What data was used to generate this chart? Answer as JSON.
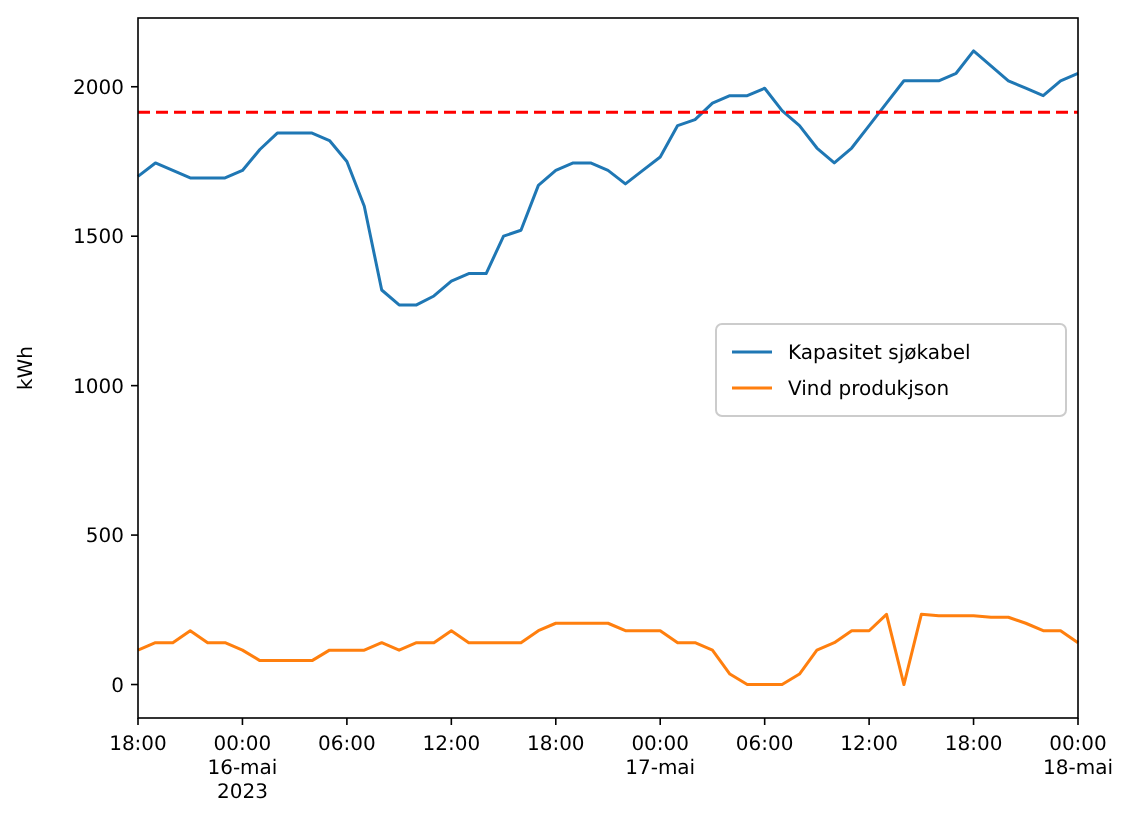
{
  "chart_data": {
    "type": "line",
    "ylabel": "kWh",
    "x": [
      "2023-05-15T18:00",
      "2023-05-15T19:00",
      "2023-05-15T20:00",
      "2023-05-15T21:00",
      "2023-05-15T22:00",
      "2023-05-15T23:00",
      "2023-05-16T00:00",
      "2023-05-16T01:00",
      "2023-05-16T02:00",
      "2023-05-16T03:00",
      "2023-05-16T04:00",
      "2023-05-16T05:00",
      "2023-05-16T06:00",
      "2023-05-16T07:00",
      "2023-05-16T08:00",
      "2023-05-16T09:00",
      "2023-05-16T10:00",
      "2023-05-16T11:00",
      "2023-05-16T12:00",
      "2023-05-16T13:00",
      "2023-05-16T14:00",
      "2023-05-16T15:00",
      "2023-05-16T16:00",
      "2023-05-16T17:00",
      "2023-05-16T18:00",
      "2023-05-16T19:00",
      "2023-05-16T20:00",
      "2023-05-16T21:00",
      "2023-05-16T22:00",
      "2023-05-16T23:00",
      "2023-05-17T00:00",
      "2023-05-17T01:00",
      "2023-05-17T02:00",
      "2023-05-17T03:00",
      "2023-05-17T04:00",
      "2023-05-17T05:00",
      "2023-05-17T06:00",
      "2023-05-17T07:00",
      "2023-05-17T08:00",
      "2023-05-17T09:00",
      "2023-05-17T10:00",
      "2023-05-17T11:00",
      "2023-05-17T12:00",
      "2023-05-17T13:00",
      "2023-05-17T14:00",
      "2023-05-17T15:00",
      "2023-05-17T16:00",
      "2023-05-17T17:00",
      "2023-05-17T18:00",
      "2023-05-17T19:00",
      "2023-05-17T20:00",
      "2023-05-17T21:00",
      "2023-05-17T22:00",
      "2023-05-17T23:00",
      "2023-05-18T00:00"
    ],
    "series": [
      {
        "name": "Kapasitet sjøkabel",
        "color": "#1f77b4",
        "values": [
          1700,
          1745,
          1720,
          1695,
          1695,
          1695,
          1720,
          1790,
          1845,
          1845,
          1845,
          1820,
          1750,
          1600,
          1320,
          1270,
          1270,
          1300,
          1350,
          1375,
          1375,
          1500,
          1520,
          1670,
          1720,
          1745,
          1745,
          1720,
          1675,
          1720,
          1765,
          1870,
          1890,
          1945,
          1970,
          1970,
          1995,
          1920,
          1870,
          1795,
          1745,
          1795,
          1870,
          1945,
          2020,
          2020,
          2020,
          2045,
          2120,
          2070,
          2020,
          1995,
          1970,
          2020,
          2045
        ]
      },
      {
        "name": "Vind produkjson",
        "color": "#ff7f0e",
        "values": [
          115,
          140,
          140,
          180,
          140,
          140,
          115,
          80,
          80,
          80,
          80,
          115,
          115,
          115,
          140,
          115,
          140,
          140,
          180,
          140,
          140,
          140,
          140,
          180,
          205,
          205,
          205,
          205,
          180,
          180,
          180,
          140,
          140,
          115,
          35,
          0,
          0,
          0,
          35,
          115,
          140,
          180,
          180,
          235,
          0,
          235,
          230,
          230,
          230,
          225,
          225,
          205,
          180,
          180,
          140
        ]
      }
    ],
    "xlim": [
      "2023-05-15T18:00",
      "2023-05-18T00:00"
    ],
    "xticks": [
      {
        "value": "2023-05-15T18:00",
        "label": "18:00"
      },
      {
        "value": "2023-05-16T00:00",
        "label": "00:00\n16-mai\n2023"
      },
      {
        "value": "2023-05-16T06:00",
        "label": "06:00"
      },
      {
        "value": "2023-05-16T12:00",
        "label": "12:00"
      },
      {
        "value": "2023-05-16T18:00",
        "label": "18:00"
      },
      {
        "value": "2023-05-17T00:00",
        "label": "00:00\n17-mai"
      },
      {
        "value": "2023-05-17T06:00",
        "label": "06:00"
      },
      {
        "value": "2023-05-17T12:00",
        "label": "12:00"
      },
      {
        "value": "2023-05-17T18:00",
        "label": "18:00"
      },
      {
        "value": "2023-05-18T00:00",
        "label": "00:00\n18-mai"
      }
    ],
    "ylim": [
      -112,
      2230
    ],
    "yticks": [
      0,
      500,
      1000,
      1500,
      2000
    ],
    "ref_lines": [
      {
        "axis": "y",
        "value": 1915,
        "color": "#ff0000",
        "line_style": "dashed"
      }
    ],
    "legend": "center right",
    "grid": false,
    "line_style": "solid"
  }
}
